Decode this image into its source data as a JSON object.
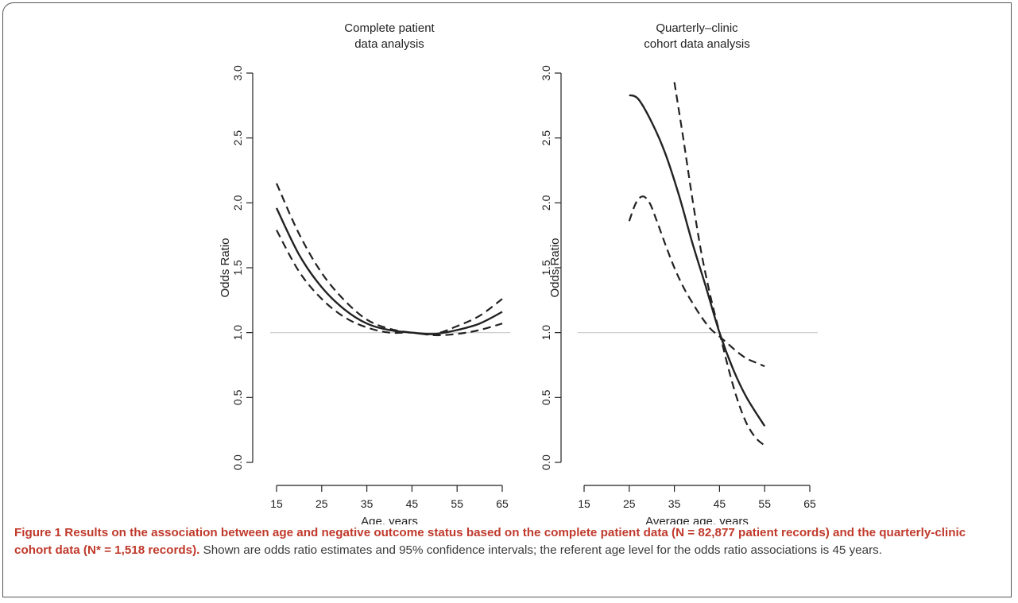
{
  "chart_data": [
    {
      "type": "line",
      "title": "Complete patient\ndata analysis",
      "xlabel": "Age, years",
      "ylabel": "Odds Ratio",
      "xlim": [
        15,
        65
      ],
      "ylim": [
        0.0,
        3.0
      ],
      "xticks": [
        "15",
        "25",
        "35",
        "45",
        "55",
        "65"
      ],
      "yticks": [
        "0.0",
        "0.5",
        "1.0",
        "1.5",
        "2.0",
        "2.5",
        "3.0"
      ],
      "reference_line": 1.0,
      "series": [
        {
          "style": "solid",
          "x": [
            15,
            20,
            25,
            30,
            35,
            40,
            45,
            50,
            55,
            60,
            65
          ],
          "y": [
            1.96,
            1.6,
            1.35,
            1.18,
            1.07,
            1.02,
            1.0,
            0.99,
            1.02,
            1.07,
            1.16
          ]
        },
        {
          "style": "dashed",
          "x": [
            15,
            20,
            25,
            30,
            35,
            40,
            45,
            50,
            55,
            60,
            65
          ],
          "y": [
            2.15,
            1.76,
            1.46,
            1.25,
            1.1,
            1.03,
            1.0,
            0.99,
            1.05,
            1.13,
            1.26
          ]
        },
        {
          "style": "dashed",
          "x": [
            15,
            20,
            25,
            30,
            35,
            40,
            45,
            50,
            55,
            60,
            65
          ],
          "y": [
            1.79,
            1.47,
            1.26,
            1.12,
            1.04,
            1.0,
            1.0,
            0.98,
            0.99,
            1.02,
            1.07
          ]
        }
      ]
    },
    {
      "type": "line",
      "title": "Quarterly–clinic\ncohort data analysis",
      "xlabel": "Average age, years",
      "ylabel": "Odds Ratio",
      "xlim": [
        15,
        65
      ],
      "ylim": [
        0.0,
        3.0
      ],
      "xticks": [
        "15",
        "25",
        "35",
        "45",
        "55",
        "65"
      ],
      "yticks": [
        "0.0",
        "0.5",
        "1.0",
        "1.5",
        "2.0",
        "2.5",
        "3.0"
      ],
      "reference_line": 1.0,
      "series": [
        {
          "style": "solid",
          "x": [
            25,
            27,
            30,
            33,
            36,
            39,
            42,
            45,
            48,
            51,
            55
          ],
          "y": [
            2.83,
            2.8,
            2.62,
            2.38,
            2.06,
            1.69,
            1.35,
            1.0,
            0.72,
            0.5,
            0.28
          ]
        },
        {
          "style": "dashed",
          "x": [
            35,
            37,
            39,
            41,
            43,
            45,
            47,
            49,
            51,
            53,
            55
          ],
          "y": [
            2.93,
            2.49,
            2.03,
            1.61,
            1.28,
            1.0,
            0.72,
            0.48,
            0.3,
            0.19,
            0.13
          ]
        },
        {
          "style": "dashed",
          "x": [
            25,
            26.5,
            28,
            29.5,
            31,
            33,
            35,
            37,
            39,
            41,
            43,
            45,
            47,
            49,
            51,
            53,
            55
          ],
          "y": [
            1.86,
            2.0,
            2.05,
            2.0,
            1.87,
            1.68,
            1.5,
            1.35,
            1.23,
            1.12,
            1.03,
            0.97,
            0.91,
            0.85,
            0.8,
            0.77,
            0.74
          ]
        }
      ]
    }
  ],
  "caption": {
    "bold": "Figure 1 Results on the association between age and negative outcome status based on the complete patient data (N = 82,877 patient records) and the quarterly-clinic cohort data (N* = 1,518 records).",
    "text": " Shown are odds ratio estimates and 95% confidence intervals; the referent age level for the odds ratio associations is 45 years."
  },
  "colors": {
    "line": "#222222",
    "reference": "#c8c8c8",
    "caption_bold": "#c0392b",
    "caption_text": "#3a3a3a"
  }
}
